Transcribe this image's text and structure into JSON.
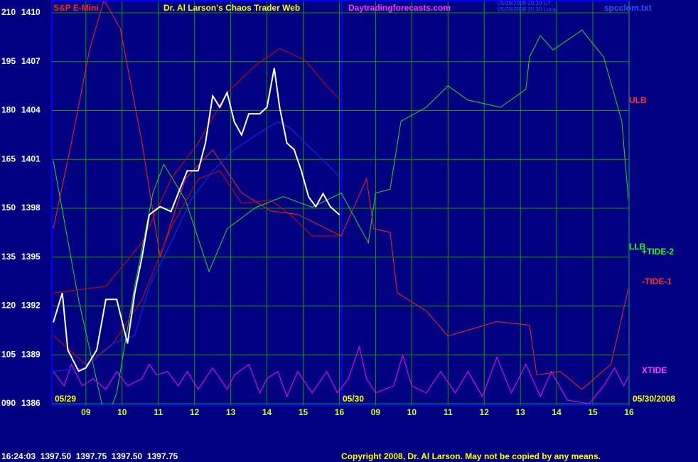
{
  "chart_data": {
    "type": "line",
    "title": "Dr. Al Larson's Chaos Trader Web",
    "symbol": "S&P E-Mini",
    "site": "Daytradingforecasts.com",
    "timestamps": [
      "05/29/2008 20:30 UT",
      "05/29/2008 15:30 Local"
    ],
    "file": "spcclom.txt",
    "status": "16:24:03  1397.50  1397.75  1397.50  1397.75",
    "copyright": "Copyright 2008, Dr. Al Larson. May not be copied by any means.",
    "annotations": [
      "ULB",
      "LLB",
      "+TIDE-2",
      "-TIDE-1",
      "XTIDE",
      "05/29",
      "05/30",
      "05/30/2008"
    ],
    "xlim": [
      8.1,
      24.0
    ],
    "xticks": [
      {
        "value": 9,
        "label": "09"
      },
      10,
      11,
      12,
      13,
      14,
      15,
      16,
      {
        "value": 17,
        "label": "09"
      },
      {
        "value": 18,
        "label": "10"
      },
      {
        "value": 19,
        "label": "11"
      },
      {
        "value": 20,
        "label": "12"
      },
      {
        "value": 21,
        "label": "13"
      },
      {
        "value": 22,
        "label": "14"
      },
      {
        "value": 23,
        "label": "15"
      },
      {
        "value": 24,
        "label": "16"
      }
    ],
    "ylim": [
      90,
      210
    ],
    "yticks": [
      {
        "value": 90,
        "label": "090"
      },
      105,
      120,
      135,
      150,
      165,
      180,
      195,
      210
    ],
    "y2lim": [
      1386,
      1410
    ],
    "y2ticks": [
      1386,
      1389,
      1392,
      1395,
      1398,
      1401,
      1404,
      1407,
      1410
    ],
    "grid": true,
    "series": [
      {
        "color": "#ff2020",
        "x": [
          8.1,
          8.6,
          9.1,
          9.5,
          9.95,
          10.55,
          11.05,
          11.75,
          12.5,
          13.3,
          14.1,
          14.85,
          16.05,
          16.75,
          16.95,
          17.4,
          17.6,
          18.4,
          19.0,
          20.35,
          21.25,
          21.45,
          22.1,
          22.7,
          23.5,
          24.0
        ],
        "values": [
          143.7,
          170.1,
          198.6,
          213.9,
          205.2,
          170.1,
          135.0,
          159.1,
          167.9,
          154.7,
          149.2,
          148.1,
          141.5,
          159.1,
          143.7,
          142.6,
          124.0,
          118.5,
          110.8,
          115.2,
          114.1,
          98.8,
          99.9,
          94.4,
          102.1,
          126.2
        ]
      },
      {
        "color": "#20e020",
        "x": [
          8.1,
          8.8,
          9.55,
          9.85,
          10.35,
          10.85,
          11.15,
          11.75,
          12.4,
          12.9,
          13.7,
          14.45,
          15.25,
          16.05,
          16.8,
          17.0,
          17.4,
          17.7,
          18.4,
          19.0,
          19.55,
          20.45,
          21.15,
          21.25,
          21.55,
          21.9,
          22.7,
          23.3,
          23.8,
          24.0
        ],
        "values": [
          164.6,
          121.8,
          84.5,
          93.3,
          126.2,
          154.7,
          163.5,
          152.5,
          130.6,
          143.7,
          150.3,
          153.6,
          150.3,
          154.7,
          139.4,
          154.7,
          155.8,
          176.7,
          181.0,
          187.6,
          183.2,
          181.0,
          186.5,
          196.4,
          203.0,
          198.6,
          204.7,
          196.4,
          176.7,
          150.3
        ]
      },
      {
        "color": "#ff00ff",
        "x": [
          8.1,
          8.4,
          8.6,
          8.9,
          9.2,
          9.55,
          9.85,
          10.15,
          10.55,
          10.75,
          10.95,
          11.25,
          11.55,
          11.8,
          12.1,
          12.5,
          12.9,
          13.1,
          13.5,
          13.8,
          14.0,
          14.3,
          14.55,
          14.85,
          15.25,
          15.65,
          15.95,
          16.25,
          16.55,
          16.75,
          17.0,
          17.5,
          17.75,
          18.0,
          18.4,
          18.8,
          19.2,
          19.55,
          19.95,
          20.35,
          20.75,
          21.15,
          21.55,
          21.85,
          22.3,
          22.9,
          23.3,
          23.6,
          23.85,
          24.0
        ],
        "values": [
          99.9,
          95.5,
          102.1,
          95.5,
          97.7,
          94.4,
          99.9,
          95.5,
          97.7,
          102.1,
          98.8,
          99.9,
          95.5,
          99.9,
          94.4,
          101.0,
          94.4,
          98.8,
          102.1,
          93.3,
          97.7,
          99.9,
          92.2,
          99.9,
          93.3,
          99.9,
          93.3,
          97.7,
          107.5,
          97.7,
          93.3,
          95.5,
          104.9,
          95.5,
          93.3,
          99.9,
          93.3,
          99.9,
          92.2,
          104.3,
          93.3,
          102.1,
          92.2,
          99.9,
          91.1,
          90.0,
          95.5,
          101.0,
          95.5,
          98.8
        ]
      },
      {
        "color": "#e00000",
        "axis": "y2",
        "x": [
          8.1,
          8.8,
          9.55,
          10.55,
          11.35,
          12.1,
          12.9,
          13.7,
          14.35,
          15.05,
          15.65,
          16.05
        ],
        "values": [
          1392.8,
          1393.0,
          1393.2,
          1395.9,
          1399.8,
          1402.0,
          1405.1,
          1406.8,
          1407.8,
          1407.1,
          1405.5,
          1404.6
        ]
      },
      {
        "color": "#e00000",
        "axis": "y2",
        "x": [
          8.1,
          9.0,
          9.75,
          10.55,
          11.35,
          12.1,
          12.7,
          13.3,
          14.1,
          14.65,
          15.25,
          16.05
        ],
        "values": [
          1390.2,
          1388.4,
          1389.7,
          1392.4,
          1396.8,
          1399.8,
          1400.3,
          1398.3,
          1398.5,
          1397.6,
          1396.3,
          1396.3
        ]
      },
      {
        "color": "#1030ff",
        "axis": "y2",
        "x": [
          8.1,
          9.0,
          9.75,
          10.35,
          10.75,
          11.35,
          11.9,
          12.5,
          13.1,
          13.7,
          14.3,
          14.65,
          15.25,
          15.85,
          16.05
        ],
        "values": [
          1388.0,
          1388.2,
          1389.7,
          1390.2,
          1393.2,
          1395.9,
          1398.5,
          1400.3,
          1401.6,
          1402.5,
          1403.3,
          1402.9,
          1401.6,
          1400.3,
          1399.8
        ]
      },
      {
        "color": "#ffffff",
        "axis": "y2",
        "x": [
          8.1,
          8.35,
          8.5,
          8.8,
          9.0,
          9.3,
          9.55,
          9.85,
          10.15,
          10.35,
          10.55,
          10.75,
          11.05,
          11.35,
          11.6,
          11.8,
          12.1,
          12.3,
          12.5,
          12.7,
          12.9,
          13.1,
          13.3,
          13.5,
          13.8,
          14.0,
          14.2,
          14.35,
          14.55,
          14.75,
          14.95,
          15.15,
          15.35,
          15.55,
          15.75,
          16.0
        ],
        "values": [
          1391.0,
          1392.8,
          1389.3,
          1388.0,
          1388.2,
          1389.3,
          1392.4,
          1392.4,
          1389.7,
          1392.8,
          1395.0,
          1397.6,
          1398.1,
          1397.8,
          1399.2,
          1400.3,
          1400.3,
          1402.0,
          1404.9,
          1404.2,
          1405.1,
          1403.3,
          1402.5,
          1403.8,
          1403.8,
          1404.2,
          1406.6,
          1404.2,
          1402.0,
          1401.6,
          1400.3,
          1398.7,
          1398.1,
          1398.9,
          1398.1,
          1397.6
        ]
      }
    ]
  }
}
